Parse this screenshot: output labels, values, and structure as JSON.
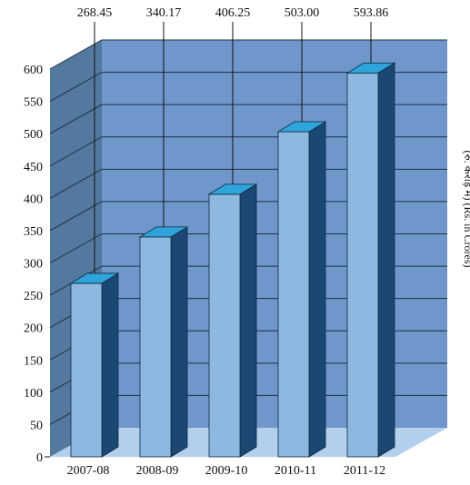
{
  "chart_data": {
    "type": "bar",
    "categories": [
      "2007-08",
      "2008-09",
      "2009-10",
      "2010-11",
      "2011-12"
    ],
    "values": [
      268.45,
      340.17,
      406.25,
      503.0,
      593.86
    ],
    "data_labels": [
      "268.45",
      "340.17",
      "406.25",
      "503.00",
      "593.86"
    ],
    "ylabel": "(रु. करोड़ में)  (Rs. in Crores)",
    "ylim": [
      0,
      600
    ],
    "yticks": [
      0,
      50,
      100,
      150,
      200,
      250,
      300,
      350,
      400,
      450,
      500,
      550,
      600
    ],
    "grid": true,
    "three_d": true,
    "colors": {
      "wall_back": "#6F97CB",
      "wall_left": "#53799F",
      "floor": "#B2D0EE",
      "bar_front": "#8DB8E0",
      "bar_side": "#1B4872",
      "bar_top": "#2EA4DA",
      "gridline": "#1f2f44"
    }
  }
}
